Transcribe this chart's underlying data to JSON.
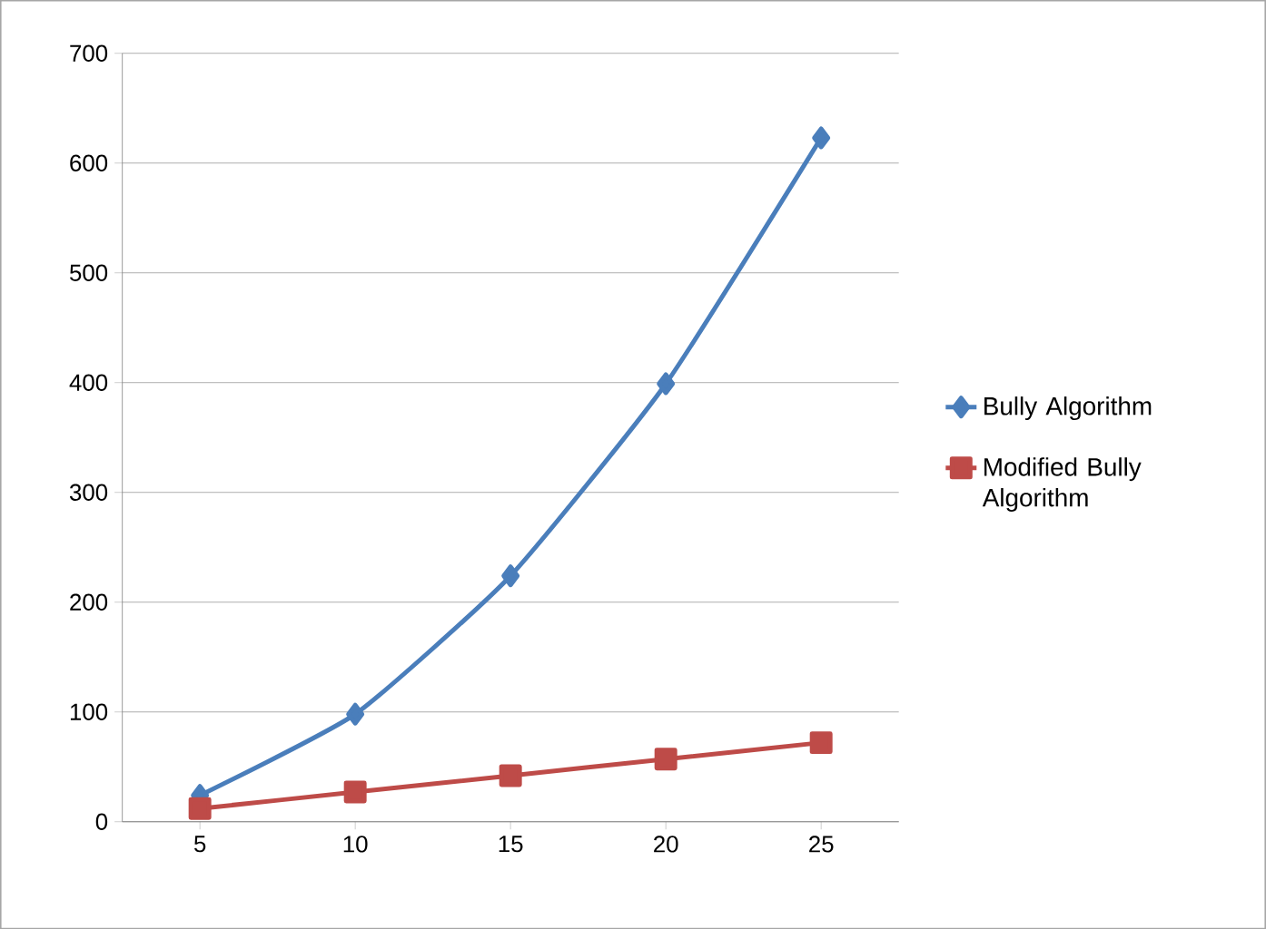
{
  "chart_data": {
    "type": "line",
    "categories": [
      "5",
      "10",
      "15",
      "20",
      "25"
    ],
    "series": [
      {
        "name": "Bully Algorithm",
        "color": "#4a7ebb",
        "marker": "diamond",
        "values": [
          24,
          98,
          224,
          399,
          623
        ]
      },
      {
        "name": "Modified Bully Algorithm",
        "color": "#be4b48",
        "marker": "square",
        "values": [
          12,
          27,
          42,
          57,
          72
        ]
      }
    ],
    "ylim": [
      0,
      700
    ],
    "yticks": [
      0,
      100,
      200,
      300,
      400,
      500,
      600,
      700
    ],
    "grid": "y",
    "legend": "right"
  }
}
